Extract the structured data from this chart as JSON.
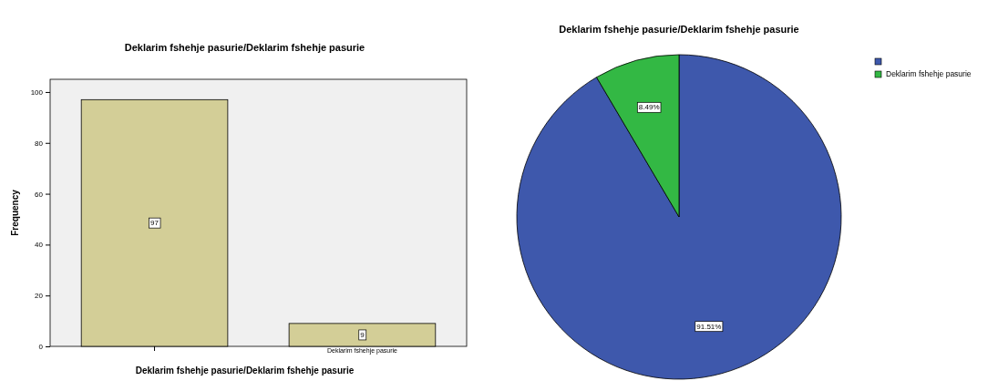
{
  "chart_data": [
    {
      "type": "bar",
      "title": "Deklarim fshehje pasurie/Deklarim fshehje pasurie",
      "xlabel": "Deklarim fshehje pasurie/Deklarim fshehje pasurie",
      "ylabel": "Frequency",
      "categories": [
        null,
        "Deklarim fshehje pasurie"
      ],
      "values": [
        97,
        9
      ],
      "color": "#d3ce97",
      "ylim": [
        0,
        105
      ],
      "yticks": [
        0,
        20,
        40,
        60,
        80,
        100
      ],
      "data_labels": true,
      "grid": false
    },
    {
      "type": "pie",
      "title": "Deklarim fshehje pasurie/Deklarim fshehje pasurie",
      "categories": [
        null,
        "Deklarim fshehje pasurie"
      ],
      "values": [
        91.51,
        8.49
      ],
      "colors": [
        "#3e58ac",
        "#33b844"
      ],
      "value_labels": [
        "91.51%",
        "8.49%"
      ],
      "legend": "top right"
    }
  ]
}
